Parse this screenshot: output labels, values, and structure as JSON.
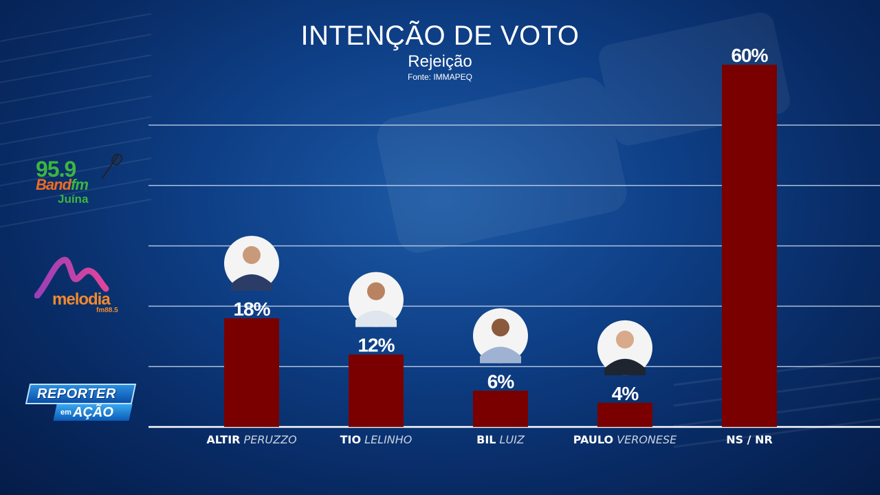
{
  "header": {
    "title": "INTENÇÃO DE VOTO",
    "subtitle": "Rejeição",
    "source": "Fonte: IMMAPEQ"
  },
  "logos": {
    "band_number": "95.9",
    "band_name_a": "Band",
    "band_name_b": "fm",
    "band_city": "Juína",
    "melodia_name": "melodia",
    "melodia_fm": "fm88.5",
    "reporter_top": "REPORTER",
    "reporter_em": "em",
    "reporter_acao": "AÇÃO"
  },
  "colors": {
    "bar": "#7a0000",
    "text": "#ffffff",
    "gridline": "#c9d8ee",
    "label_secondary": "#c9d3e0"
  },
  "chart_data": {
    "type": "bar",
    "title": "INTENÇÃO DE VOTO",
    "subtitle": "Rejeição",
    "categories": [
      {
        "first": "ALTIR",
        "last": "PERUZZO"
      },
      {
        "first": "TIO",
        "last": "LELINHO"
      },
      {
        "first": "BIL",
        "last": "LUIZ"
      },
      {
        "first": "PAULO",
        "last": "VERONESE"
      },
      {
        "first": "NS / NR",
        "last": ""
      }
    ],
    "values": [
      18,
      12,
      6,
      4,
      60
    ],
    "value_labels": [
      "18%",
      "12%",
      "6%",
      "4%",
      "60%"
    ],
    "has_photo": [
      true,
      true,
      true,
      true,
      false
    ],
    "ylim": [
      0,
      50
    ],
    "grid": true,
    "xlabel": "",
    "ylabel": ""
  }
}
